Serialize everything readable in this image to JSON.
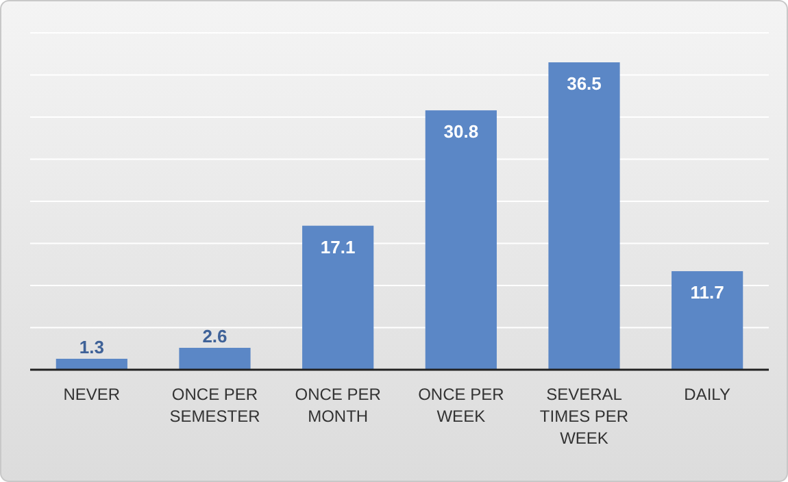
{
  "chart_data": {
    "type": "bar",
    "categories": [
      "NEVER",
      "ONCE PER SEMESTER",
      "ONCE PER MONTH",
      "ONCE PER WEEK",
      "SEVERAL TIMES PER WEEK",
      "DAILY"
    ],
    "values": [
      1.3,
      2.6,
      17.1,
      30.8,
      36.5,
      11.7
    ],
    "color": "#5b87c6",
    "data_labels": true,
    "grid": "y",
    "tick_labels": "x",
    "ylim": [
      0,
      40
    ],
    "yticks": [
      {
        "value": 0,
        "label": null
      },
      {
        "value": 5,
        "label": null
      },
      {
        "value": 10,
        "label": null
      },
      {
        "value": 15,
        "label": null
      },
      {
        "value": 20,
        "label": null
      },
      {
        "value": 25,
        "label": null
      },
      {
        "value": 30,
        "label": null
      },
      {
        "value": 35,
        "label": null
      },
      {
        "value": 40,
        "label": null
      }
    ]
  }
}
